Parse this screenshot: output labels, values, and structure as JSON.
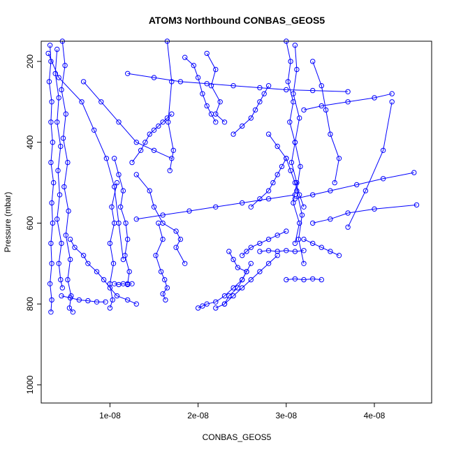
{
  "chart_data": {
    "type": "line",
    "title": "ATOM3 Northbound CONBAS_GEOS5",
    "xlabel": "CONBAS_GEOS5",
    "ylabel": "Pressure (mbar)",
    "xlim": [
      2.2e-09,
      4.65e-08
    ],
    "ylim": [
      150,
      1045
    ],
    "y_reversed": true,
    "x_ticks": [
      1e-08,
      2e-08,
      3e-08,
      4e-08
    ],
    "x_tick_labels": [
      "1e-08",
      "2e-08",
      "3e-08",
      "4e-08"
    ],
    "y_ticks": [
      200,
      400,
      600,
      800,
      1000
    ],
    "y_tick_labels": [
      "200",
      "400",
      "600",
      "800",
      "1000"
    ],
    "grid": false,
    "color": "#0000ff",
    "marker": "open-circle",
    "series": [
      {
        "x": [
          3.2e-09,
          3.3e-09,
          3.1e-09,
          3.4e-09,
          3.3e-09,
          3.5e-09,
          3.3e-09,
          3.6e-09,
          3.4e-09,
          3.5e-09,
          3.3e-09,
          3.4e-09,
          3.2e-09,
          3.4e-09,
          3.3e-09
        ],
        "y": [
          160,
          200,
          250,
          300,
          350,
          400,
          450,
          500,
          550,
          600,
          650,
          700,
          750,
          790,
          820
        ]
      },
      {
        "x": [
          4e-09,
          3.8e-09,
          4.2e-09,
          4e-09,
          4.4e-09,
          4.1e-09,
          4.3e-09,
          4e-09,
          4.5e-09,
          4.2e-09,
          4.4e-09,
          4.6e-09
        ],
        "y": [
          170,
          230,
          290,
          350,
          410,
          470,
          530,
          590,
          650,
          700,
          740,
          760
        ]
      },
      {
        "x": [
          4.6e-09,
          4.9e-09,
          4.5e-09,
          5e-09,
          4.7e-09,
          5.2e-09,
          4.8e-09,
          5.3e-09,
          5e-09,
          5.5e-09,
          5.2e-09,
          5.6e-09,
          5.4e-09,
          5.8e-09
        ],
        "y": [
          150,
          210,
          270,
          330,
          390,
          450,
          510,
          570,
          630,
          690,
          740,
          780,
          810,
          820
        ]
      },
      {
        "x": [
          3e-09,
          4.2e-09,
          6.8e-09,
          8.2e-09,
          9.6e-09,
          1.05e-08,
          1.1e-08,
          1.15e-08
        ],
        "y": [
          180,
          240,
          300,
          370,
          440,
          510,
          600,
          690
        ]
      },
      {
        "x": [
          5.5e-09,
          6e-09,
          7e-09,
          7.5e-09,
          8.5e-09,
          9.3e-09,
          1e-08,
          1.08e-08,
          1.2e-08,
          1.3e-08
        ],
        "y": [
          640,
          660,
          680,
          700,
          720,
          740,
          760,
          780,
          790,
          800
        ]
      },
      {
        "x": [
          1.05e-08,
          1.1e-08,
          1.15e-08,
          1.12e-08,
          1.18e-08,
          1.2e-08,
          1.17e-08,
          1.22e-08,
          1.2e-08
        ],
        "y": [
          440,
          480,
          520,
          560,
          600,
          640,
          680,
          720,
          750
        ]
      },
      {
        "x": [
          1.08e-08,
          1.02e-08,
          1.05e-08,
          1e-08,
          1.04e-08,
          1e-08,
          1.03e-08,
          1e-08
        ],
        "y": [
          500,
          560,
          600,
          650,
          700,
          750,
          790,
          810
        ]
      },
      {
        "x": [
          1.25e-08,
          1.35e-08,
          1.4e-08,
          1.45e-08,
          1.5e-08,
          1.55e-08,
          1.6e-08,
          1.65e-08,
          1.7e-08
        ],
        "y": [
          450,
          420,
          400,
          380,
          370,
          360,
          350,
          340,
          330
        ]
      },
      {
        "x": [
          1.55e-08,
          1.6e-08,
          1.52e-08,
          1.58e-08,
          1.62e-08,
          1.65e-08,
          1.6e-08,
          1.63e-08
        ],
        "y": [
          600,
          640,
          680,
          720,
          740,
          760,
          775,
          790
        ]
      },
      {
        "x": [
          1.65e-08,
          1.7e-08,
          1.66e-08,
          1.72e-08,
          1.68e-08
        ],
        "y": [
          150,
          250,
          350,
          420,
          470
        ]
      },
      {
        "x": [
          1.3e-08,
          1.45e-08,
          1.5e-08,
          1.6e-08,
          1.75e-08,
          1.8e-08,
          1.75e-08,
          1.85e-08
        ],
        "y": [
          480,
          520,
          560,
          600,
          620,
          640,
          660,
          700
        ]
      },
      {
        "x": [
          1.85e-08,
          1.95e-08,
          2e-08,
          2.05e-08,
          2.1e-08,
          2.15e-08,
          2.2e-08
        ],
        "y": [
          190,
          210,
          240,
          280,
          310,
          330,
          350
        ]
      },
      {
        "x": [
          2e-08,
          2.05e-08,
          2.1e-08,
          2.2e-08,
          2.3e-08,
          2.4e-08,
          2.5e-08,
          2.55e-08,
          2.6e-08
        ],
        "y": [
          810,
          805,
          800,
          795,
          780,
          760,
          740,
          720,
          700
        ]
      },
      {
        "x": [
          2.2e-08,
          2.3e-08,
          2.35e-08,
          2.45e-08,
          2.5e-08,
          2.55e-08,
          2.45e-08,
          2.4e-08,
          2.35e-08
        ],
        "y": [
          810,
          800,
          780,
          760,
          740,
          720,
          710,
          690,
          670
        ]
      },
      {
        "x": [
          2.3e-08,
          2.4e-08,
          2.5e-08,
          2.6e-08,
          2.7e-08,
          2.8e-08,
          2.9e-08
        ],
        "y": [
          800,
          780,
          760,
          740,
          720,
          700,
          680
        ]
      },
      {
        "x": [
          2.5e-08,
          2.55e-08,
          2.6e-08,
          2.7e-08,
          2.8e-08,
          2.9e-08,
          3e-08
        ],
        "y": [
          680,
          670,
          660,
          650,
          640,
          630,
          620
        ]
      },
      {
        "x": [
          2.6e-08,
          2.7e-08,
          2.8e-08,
          2.85e-08,
          2.9e-08,
          2.95e-08,
          3e-08
        ],
        "y": [
          560,
          540,
          520,
          500,
          480,
          460,
          440
        ]
      },
      {
        "x": [
          2.4e-08,
          2.5e-08,
          2.6e-08,
          2.65e-08,
          2.7e-08,
          2.75e-08,
          2.8e-08
        ],
        "y": [
          380,
          360,
          340,
          320,
          300,
          280,
          260
        ]
      },
      {
        "x": [
          3e-08,
          3.05e-08,
          3.02e-08,
          3.08e-08,
          3.04e-08,
          3.1e-08,
          3.06e-08,
          3.12e-08,
          3.08e-08,
          3.15e-08,
          3.1e-08
        ],
        "y": [
          150,
          200,
          250,
          300,
          350,
          400,
          450,
          500,
          550,
          600,
          650
        ]
      },
      {
        "x": [
          3.1e-08,
          3.12e-08,
          3.08e-08,
          3.15e-08,
          3.1e-08,
          3.16e-08,
          3.12e-08,
          3.18e-08,
          3.14e-08,
          3.2e-08
        ],
        "y": [
          160,
          220,
          280,
          340,
          400,
          460,
          520,
          580,
          640,
          700
        ]
      },
      {
        "x": [
          3e-08,
          3.1e-08,
          3.2e-08,
          3.3e-08,
          3.4e-08
        ],
        "y": [
          740,
          738,
          740,
          738,
          740
        ]
      },
      {
        "x": [
          2.7e-08,
          2.8e-08,
          2.9e-08,
          3e-08,
          3.1e-08,
          3.2e-08
        ],
        "y": [
          670,
          668,
          670,
          668,
          670,
          668
        ]
      },
      {
        "x": [
          3.1e-08,
          3.3e-08,
          3.5e-08,
          3.8e-08,
          4.1e-08,
          4.45e-08
        ],
        "y": [
          540,
          530,
          520,
          505,
          490,
          475
        ]
      },
      {
        "x": [
          3.2e-08,
          3.4e-08,
          3.7e-08,
          4e-08,
          4.2e-08
        ],
        "y": [
          320,
          310,
          300,
          290,
          280
        ]
      },
      {
        "x": [
          4.2e-08,
          4.1e-08,
          3.9e-08,
          3.7e-08
        ],
        "y": [
          300,
          420,
          520,
          610
        ]
      },
      {
        "x": [
          3.3e-08,
          3.5e-08,
          3.7e-08,
          4e-08,
          4.48e-08
        ],
        "y": [
          600,
          590,
          575,
          565,
          555
        ]
      },
      {
        "x": [
          3.2e-08,
          3.3e-08,
          3.4e-08,
          3.5e-08,
          3.6e-08
        ],
        "y": [
          640,
          650,
          660,
          670,
          680
        ]
      },
      {
        "x": [
          1.2e-08,
          1.5e-08,
          1.8e-08,
          2.1e-08,
          2.4e-08,
          2.7e-08,
          3e-08,
          3.3e-08,
          3.7e-08
        ],
        "y": [
          230,
          240,
          250,
          255,
          260,
          265,
          270,
          272,
          275
        ]
      },
      {
        "x": [
          1.3e-08,
          1.6e-08,
          1.9e-08,
          2.2e-08,
          2.5e-08,
          2.8e-08,
          3.1e-08
        ],
        "y": [
          590,
          580,
          570,
          560,
          550,
          540,
          530
        ]
      },
      {
        "x": [
          7e-09,
          9e-09,
          1.1e-08,
          1.3e-08,
          1.5e-08,
          1.7e-08
        ],
        "y": [
          250,
          300,
          350,
          400,
          420,
          440
        ]
      },
      {
        "x": [
          2.1e-08,
          2.2e-08,
          2.15e-08,
          2.25e-08,
          2.2e-08,
          2.3e-08
        ],
        "y": [
          180,
          220,
          260,
          300,
          330,
          350
        ]
      },
      {
        "x": [
          3.3e-08,
          3.4e-08,
          3.45e-08,
          3.5e-08,
          3.6e-08,
          3.55e-08
        ],
        "y": [
          200,
          260,
          320,
          380,
          440,
          500
        ]
      },
      {
        "x": [
          2.8e-08,
          2.9e-08,
          3e-08,
          3.05e-08,
          3.1e-08,
          3.15e-08,
          3.2e-08
        ],
        "y": [
          380,
          410,
          440,
          470,
          500,
          530,
          560
        ]
      },
      {
        "x": [
          1.05e-08,
          1.1e-08,
          1.15e-08,
          1.2e-08,
          1.25e-08
        ],
        "y": [
          750,
          752,
          750,
          752,
          750
        ]
      },
      {
        "x": [
          4.5e-09,
          5.5e-09,
          6.5e-09,
          7.5e-09,
          8.5e-09,
          9.5e-09
        ],
        "y": [
          780,
          785,
          790,
          792,
          795,
          795
        ]
      }
    ]
  }
}
